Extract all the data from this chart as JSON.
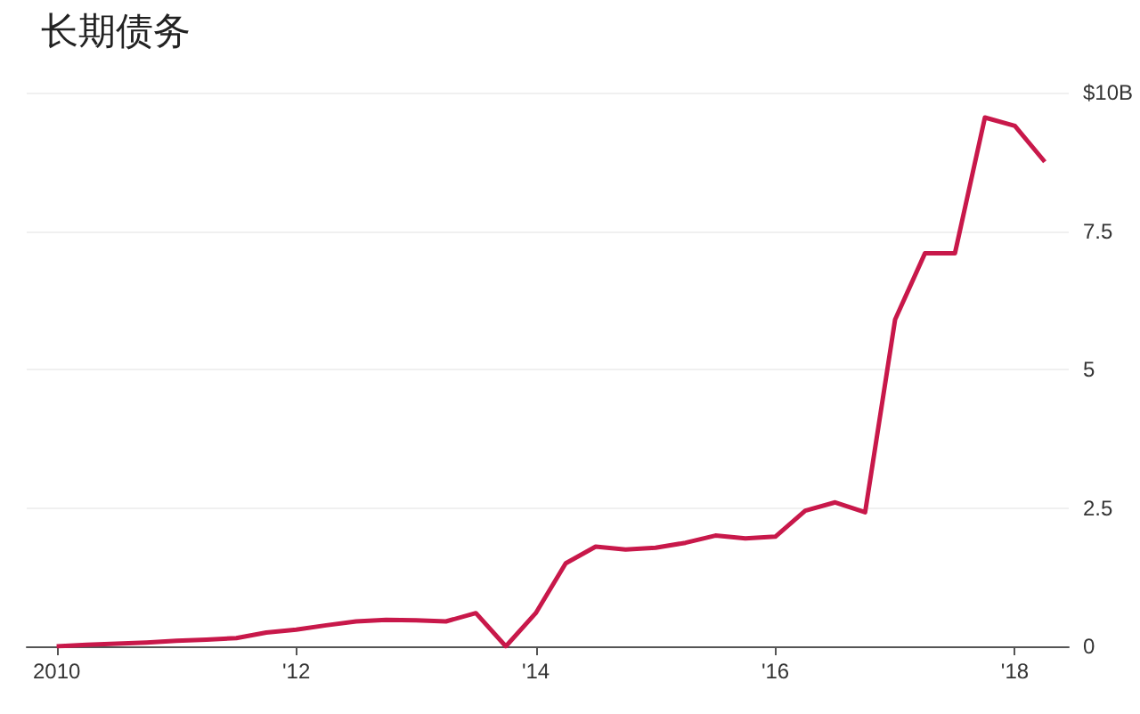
{
  "chart_data": {
    "type": "line",
    "title": "长期债务",
    "x": [
      2010,
      2010.25,
      2010.5,
      2010.75,
      2011,
      2011.25,
      2011.5,
      2011.75,
      2012,
      2012.25,
      2012.5,
      2012.75,
      2013,
      2013.25,
      2013.5,
      2013.75,
      2014,
      2014.25,
      2014.5,
      2014.75,
      2015,
      2015.25,
      2015.5,
      2015.75,
      2016,
      2016.25,
      2016.5,
      2016.75,
      2017,
      2017.25,
      2017.5,
      2017.75,
      2018,
      2018.25
    ],
    "series": [
      {
        "color": "#c8184a",
        "values": [
          0,
          0.03,
          0.05,
          0.07,
          0.1,
          0.12,
          0.15,
          0.25,
          0.3,
          0.38,
          0.45,
          0.48,
          0.47,
          0.45,
          0.6,
          0,
          0.6,
          1.5,
          1.8,
          1.75,
          1.78,
          1.87,
          2.0,
          1.95,
          1.98,
          2.45,
          2.6,
          2.42,
          5.9,
          7.1,
          7.1,
          9.55,
          9.4,
          8.75
        ]
      }
    ],
    "xlim": [
      2009.75,
      2018.45
    ],
    "xticks": [
      {
        "value": 2010,
        "label": "2010"
      },
      {
        "value": 2012,
        "label": "'12"
      },
      {
        "value": 2014,
        "label": "'14"
      },
      {
        "value": 2016,
        "label": "'16"
      },
      {
        "value": 2018,
        "label": "'18"
      }
    ],
    "ylim": [
      0,
      10
    ],
    "yticks": [
      0,
      2.5,
      5,
      7.5,
      {
        "value": 10,
        "label": "$10B"
      }
    ],
    "grid": "y",
    "marker": "none",
    "line_style": "solid"
  }
}
